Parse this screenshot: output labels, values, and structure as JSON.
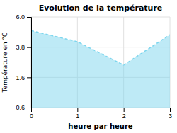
{
  "chart_data": {
    "type": "area",
    "title": "Evolution de la température",
    "x_label": "heure par heure",
    "y_label": "Température en °C",
    "x": [
      0,
      1,
      2,
      3
    ],
    "values": [
      5.0,
      4.2,
      2.5,
      4.7
    ],
    "color": "#7dd6ee",
    "line_style": "dashed",
    "xlim": [
      0,
      3
    ],
    "ylim": [
      -0.6,
      6.0
    ],
    "xticks": [
      0,
      1,
      2,
      3
    ],
    "yticks": [
      -0.6,
      1.6,
      3.8,
      {
        "value": 6.0,
        "label": "6.0"
      }
    ],
    "grid": true
  }
}
